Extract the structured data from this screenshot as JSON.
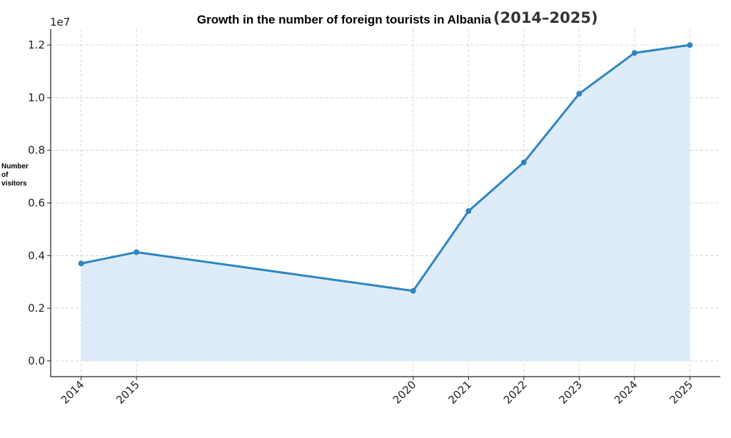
{
  "chart_data": {
    "type": "area",
    "title": "Growth in the number of foreign tourists in Albania",
    "title_suffix": "(2014–2025)",
    "xlabel": "",
    "ylabel_lines": [
      "Number",
      "of",
      "visitors"
    ],
    "y_offset_label": "1e7",
    "x": [
      2014,
      2015,
      2020,
      2021,
      2022,
      2023,
      2024,
      2025
    ],
    "x_tick_labels": [
      "2014",
      "2015",
      "2020",
      "2021",
      "2022",
      "2023",
      "2024",
      "2025"
    ],
    "y_ticks": [
      0.0,
      0.2,
      0.4,
      0.6,
      0.8,
      1.0,
      1.2
    ],
    "y_tick_labels": [
      "0.0",
      "0.2",
      "0.4",
      "0.6",
      "0.8",
      "1.0",
      "1.2"
    ],
    "series": [
      {
        "values": [
          3700000,
          4130000,
          2660000,
          5690000,
          7540000,
          10150000,
          11700000,
          12000000
        ],
        "color": "#2e86c1",
        "fill_color": "#ddecf8"
      }
    ],
    "ylim": [
      -0.06,
      1.26
    ],
    "grid": true,
    "legend": "none"
  }
}
